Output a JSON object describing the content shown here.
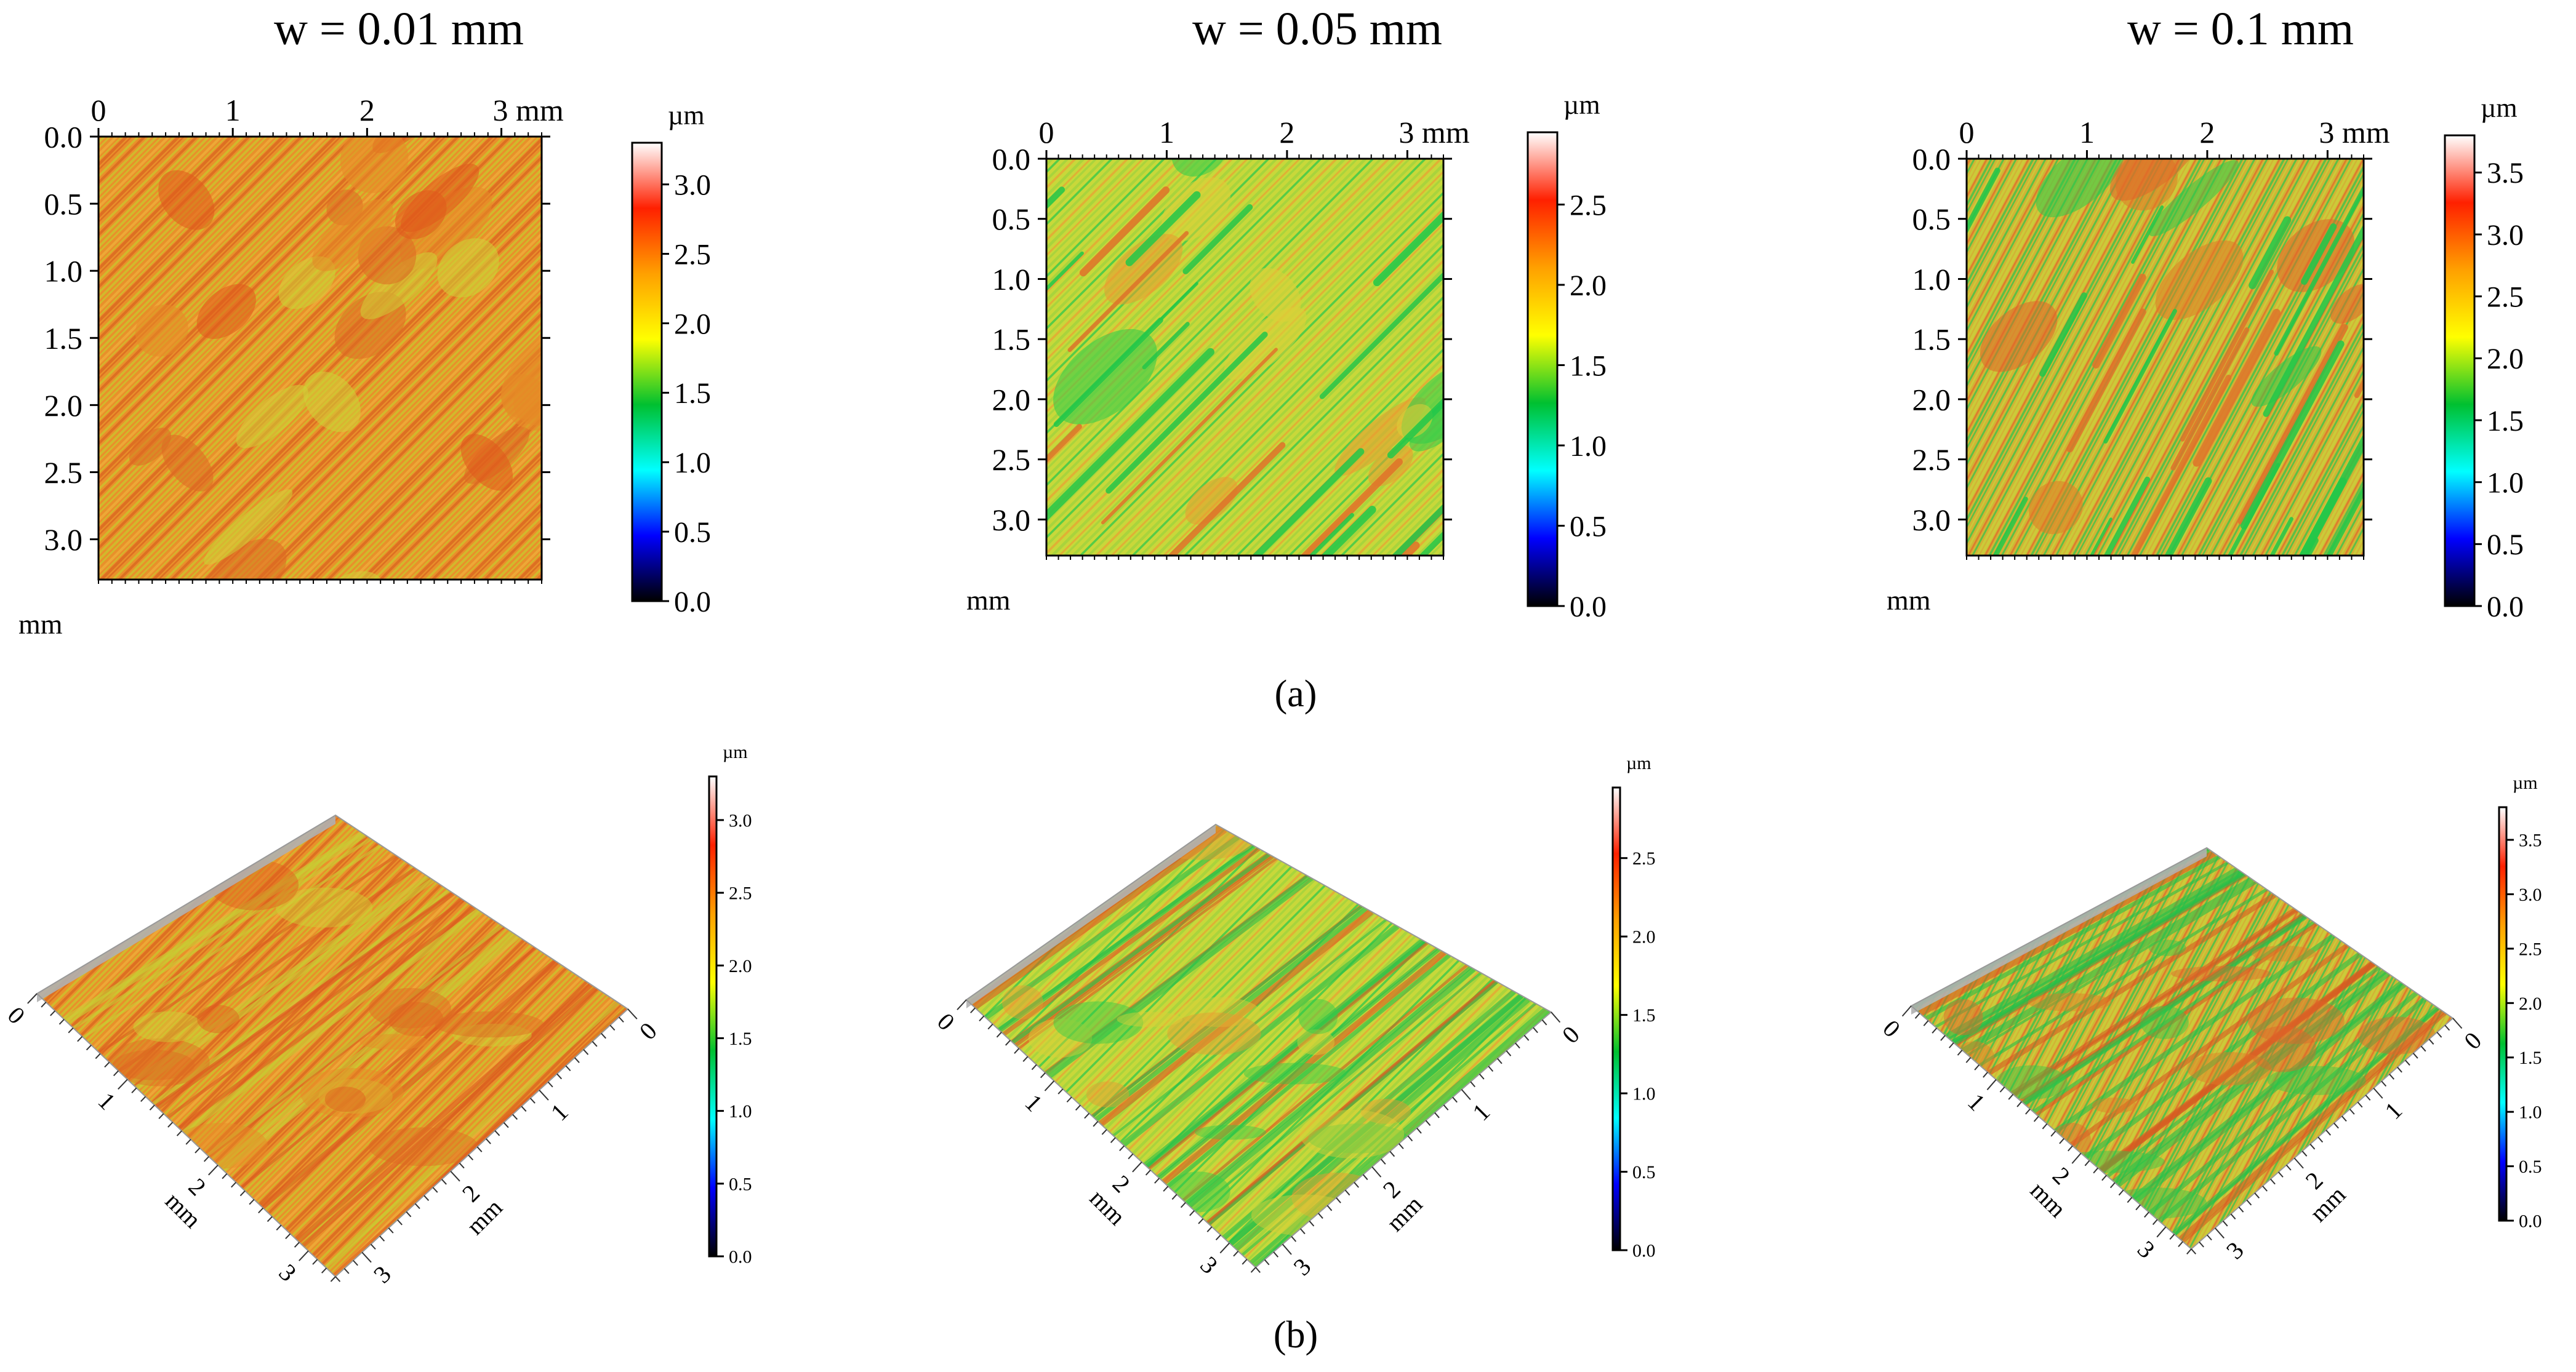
{
  "figure": {
    "panel_a_label": "(a)",
    "panel_b_label": "(b)",
    "colors": {
      "colormap": [
        "#000000",
        "#0000ff",
        "#00ffff",
        "#00c030",
        "#ffff00",
        "#ffa000",
        "#ff2000",
        "#ffffff"
      ],
      "surface_base": "#e88a24",
      "edge": "#999999"
    }
  },
  "chart_data": [
    {
      "type": "heatmap",
      "view": "2D top view",
      "title": "w = 0.01 mm",
      "x_ticks": [
        "0",
        "1",
        "2",
        "3 mm"
      ],
      "x_range": [
        0,
        3.3
      ],
      "y_ticks": [
        "0.0",
        "0.5",
        "1.0",
        "1.5",
        "2.0",
        "2.5",
        "3.0"
      ],
      "y_range": [
        0,
        3.3
      ],
      "y_unit": "mm",
      "colorbar_unit": "µm",
      "colorbar_ticks": [
        "0.0",
        "0.5",
        "1.0",
        "1.5",
        "2.0",
        "2.5",
        "3.0"
      ],
      "z_range": [
        0,
        3.3
      ]
    },
    {
      "type": "heatmap",
      "view": "2D top view",
      "title": "w = 0.05 mm",
      "x_ticks": [
        "0",
        "1",
        "2",
        "3 mm"
      ],
      "x_range": [
        0,
        3.3
      ],
      "y_ticks": [
        "0.0",
        "0.5",
        "1.0",
        "1.5",
        "2.0",
        "2.5",
        "3.0"
      ],
      "y_range": [
        0,
        3.3
      ],
      "y_unit": "mm",
      "colorbar_unit": "µm",
      "colorbar_ticks": [
        "0.0",
        "0.5",
        "1.0",
        "1.5",
        "2.0",
        "2.5"
      ],
      "z_range": [
        0,
        2.95
      ]
    },
    {
      "type": "heatmap",
      "view": "2D top view",
      "title": "w = 0.1 mm",
      "x_ticks": [
        "0",
        "1",
        "2",
        "3 mm"
      ],
      "x_range": [
        0,
        3.3
      ],
      "y_ticks": [
        "0.0",
        "0.5",
        "1.0",
        "1.5",
        "2.0",
        "2.5",
        "3.0"
      ],
      "y_range": [
        0,
        3.3
      ],
      "y_unit": "mm",
      "colorbar_unit": "µm",
      "colorbar_ticks": [
        "0.0",
        "0.5",
        "1.0",
        "1.5",
        "2.0",
        "2.5",
        "3.0",
        "3.5"
      ],
      "z_range": [
        0,
        3.8
      ]
    },
    {
      "type": "heatmap",
      "view": "3D isometric view",
      "axis_ticks_left": [
        "0",
        "1",
        "2",
        "3"
      ],
      "axis_ticks_right": [
        "0",
        "1",
        "2",
        "3"
      ],
      "axis_unit": "mm",
      "colorbar_unit": "µm",
      "colorbar_ticks": [
        "0.0",
        "0.5",
        "1.0",
        "1.5",
        "2.0",
        "2.5",
        "3.0"
      ],
      "z_range": [
        0,
        3.3
      ]
    },
    {
      "type": "heatmap",
      "view": "3D isometric view",
      "axis_ticks_left": [
        "0",
        "1",
        "2",
        "3"
      ],
      "axis_ticks_right": [
        "0",
        "1",
        "2",
        "3"
      ],
      "axis_unit": "mm",
      "colorbar_unit": "µm",
      "colorbar_ticks": [
        "0.0",
        "0.5",
        "1.0",
        "1.5",
        "2.0",
        "2.5"
      ],
      "z_range": [
        0,
        2.95
      ]
    },
    {
      "type": "heatmap",
      "view": "3D isometric view",
      "axis_ticks_left": [
        "0",
        "1",
        "2",
        "3"
      ],
      "axis_ticks_right": [
        "0",
        "1",
        "2",
        "3"
      ],
      "axis_unit": "mm",
      "colorbar_unit": "µm",
      "colorbar_ticks": [
        "0.0",
        "0.5",
        "1.0",
        "1.5",
        "2.0",
        "2.5",
        "3.0",
        "3.5"
      ],
      "z_range": [
        0,
        3.8
      ]
    }
  ]
}
